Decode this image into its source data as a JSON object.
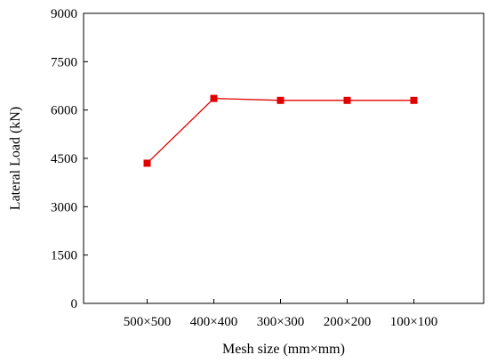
{
  "chart_data": {
    "type": "line",
    "title": "",
    "xlabel": "Mesh size (mm×mm)",
    "ylabel": "Lateral Load (kN)",
    "categories": [
      "500×500",
      "400×400",
      "300×300",
      "200×200",
      "100×100"
    ],
    "series": [
      {
        "values": [
          4350,
          6360,
          6300,
          6300,
          6300
        ],
        "color": "#e00000",
        "marker": "square"
      }
    ],
    "ylim": [
      0,
      9000
    ],
    "yticks": [
      0,
      1500,
      3000,
      4500,
      6000,
      7500,
      9000
    ],
    "grid": false,
    "legend": "none"
  }
}
